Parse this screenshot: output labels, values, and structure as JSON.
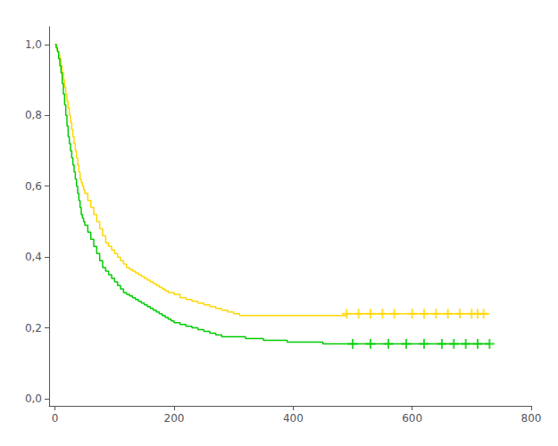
{
  "chart_data": {
    "type": "line",
    "xlim": [
      -10,
      800
    ],
    "ylim": [
      -0.02,
      1.05
    ],
    "xticks": [
      0,
      200,
      400,
      600,
      800
    ],
    "yticks": [
      {
        "value": 0.0,
        "label": "0,0"
      },
      {
        "value": 0.2,
        "label": "0,2"
      },
      {
        "value": 0.4,
        "label": "0,4"
      },
      {
        "value": 0.6,
        "label": "0,6"
      },
      {
        "value": 0.8,
        "label": "0,8"
      },
      {
        "value": 1.0,
        "label": "1,0"
      }
    ],
    "grid": false,
    "series": [
      {
        "type": "line",
        "line_style": "step",
        "color": "#FFD700",
        "x": [
          0,
          2,
          4,
          6,
          8,
          10,
          12,
          14,
          16,
          18,
          20,
          22,
          24,
          26,
          28,
          30,
          32,
          34,
          36,
          38,
          40,
          42,
          44,
          46,
          48,
          50,
          55,
          60,
          65,
          70,
          75,
          80,
          85,
          90,
          95,
          100,
          105,
          110,
          115,
          120,
          125,
          130,
          135,
          140,
          145,
          150,
          155,
          160,
          165,
          170,
          175,
          180,
          185,
          190,
          195,
          200,
          210,
          220,
          230,
          240,
          250,
          260,
          270,
          280,
          290,
          300,
          310,
          320,
          330,
          340,
          350,
          360,
          370,
          380,
          390,
          400,
          410,
          420,
          430,
          440,
          450,
          460,
          470,
          480,
          490,
          500,
          510,
          520,
          530,
          540,
          550,
          560,
          570,
          580,
          590,
          600,
          610,
          620,
          630,
          640,
          650,
          660,
          670,
          680,
          690,
          700,
          710,
          720,
          730
        ],
        "values": [
          1.0,
          0.99,
          0.98,
          0.97,
          0.96,
          0.94,
          0.92,
          0.9,
          0.88,
          0.86,
          0.84,
          0.82,
          0.8,
          0.78,
          0.76,
          0.74,
          0.72,
          0.7,
          0.68,
          0.66,
          0.64,
          0.62,
          0.61,
          0.6,
          0.59,
          0.58,
          0.56,
          0.54,
          0.52,
          0.5,
          0.48,
          0.46,
          0.44,
          0.43,
          0.42,
          0.41,
          0.4,
          0.39,
          0.38,
          0.37,
          0.365,
          0.36,
          0.355,
          0.35,
          0.345,
          0.34,
          0.335,
          0.33,
          0.325,
          0.32,
          0.315,
          0.31,
          0.305,
          0.3,
          0.3,
          0.295,
          0.285,
          0.28,
          0.275,
          0.27,
          0.265,
          0.26,
          0.255,
          0.25,
          0.245,
          0.24,
          0.235,
          0.235,
          0.235,
          0.235,
          0.235,
          0.235,
          0.235,
          0.235,
          0.235,
          0.235,
          0.235,
          0.235,
          0.235,
          0.235,
          0.235,
          0.235,
          0.235,
          0.235,
          0.24,
          0.24,
          0.24,
          0.24,
          0.24,
          0.24,
          0.24,
          0.24,
          0.24,
          0.24,
          0.24,
          0.24,
          0.24,
          0.24,
          0.24,
          0.24,
          0.24,
          0.24,
          0.24,
          0.24,
          0.24,
          0.24,
          0.24,
          0.24,
          0.24
        ]
      },
      {
        "type": "scatter",
        "marker": "+",
        "color": "#FFD700",
        "x": [
          490,
          510,
          530,
          550,
          570,
          600,
          620,
          640,
          660,
          680,
          700,
          710,
          720
        ],
        "values": [
          0.24,
          0.24,
          0.24,
          0.24,
          0.24,
          0.24,
          0.24,
          0.24,
          0.24,
          0.24,
          0.24,
          0.24,
          0.24
        ]
      },
      {
        "type": "line",
        "line_style": "step",
        "color": "#00CC00",
        "x": [
          0,
          2,
          4,
          6,
          8,
          10,
          12,
          14,
          16,
          18,
          20,
          22,
          24,
          26,
          28,
          30,
          32,
          34,
          36,
          38,
          40,
          42,
          44,
          46,
          48,
          50,
          55,
          60,
          65,
          70,
          75,
          80,
          85,
          90,
          95,
          100,
          105,
          110,
          115,
          120,
          125,
          130,
          135,
          140,
          145,
          150,
          155,
          160,
          165,
          170,
          175,
          180,
          185,
          190,
          195,
          200,
          210,
          220,
          230,
          240,
          250,
          260,
          270,
          280,
          290,
          300,
          310,
          320,
          330,
          340,
          350,
          360,
          370,
          380,
          390,
          400,
          410,
          420,
          430,
          440,
          450,
          460,
          470,
          480,
          490,
          500,
          510,
          520,
          530,
          540,
          550,
          560,
          570,
          580,
          590,
          600,
          610,
          620,
          630,
          640,
          650,
          660,
          670,
          680,
          690,
          700,
          710,
          720,
          730
        ],
        "values": [
          1.0,
          0.99,
          0.98,
          0.96,
          0.94,
          0.92,
          0.89,
          0.86,
          0.83,
          0.8,
          0.77,
          0.74,
          0.72,
          0.7,
          0.68,
          0.66,
          0.64,
          0.62,
          0.6,
          0.58,
          0.56,
          0.54,
          0.52,
          0.51,
          0.5,
          0.49,
          0.47,
          0.45,
          0.43,
          0.41,
          0.39,
          0.37,
          0.36,
          0.35,
          0.34,
          0.33,
          0.32,
          0.31,
          0.3,
          0.295,
          0.29,
          0.285,
          0.28,
          0.275,
          0.27,
          0.265,
          0.26,
          0.255,
          0.25,
          0.245,
          0.24,
          0.235,
          0.23,
          0.225,
          0.22,
          0.215,
          0.21,
          0.205,
          0.2,
          0.195,
          0.19,
          0.185,
          0.18,
          0.175,
          0.175,
          0.175,
          0.175,
          0.17,
          0.17,
          0.17,
          0.165,
          0.165,
          0.165,
          0.165,
          0.16,
          0.16,
          0.16,
          0.16,
          0.16,
          0.16,
          0.155,
          0.155,
          0.155,
          0.155,
          0.155,
          0.155,
          0.155,
          0.155,
          0.155,
          0.155,
          0.155,
          0.155,
          0.155,
          0.155,
          0.155,
          0.155,
          0.155,
          0.155,
          0.155,
          0.155,
          0.155,
          0.155,
          0.155,
          0.155,
          0.155,
          0.155,
          0.155,
          0.155,
          0.155
        ]
      },
      {
        "type": "scatter",
        "marker": "+",
        "color": "#00CC00",
        "x": [
          500,
          530,
          560,
          590,
          620,
          650,
          670,
          690,
          710,
          730
        ],
        "values": [
          0.155,
          0.155,
          0.155,
          0.155,
          0.155,
          0.155,
          0.155,
          0.155,
          0.155,
          0.155
        ]
      }
    ]
  }
}
